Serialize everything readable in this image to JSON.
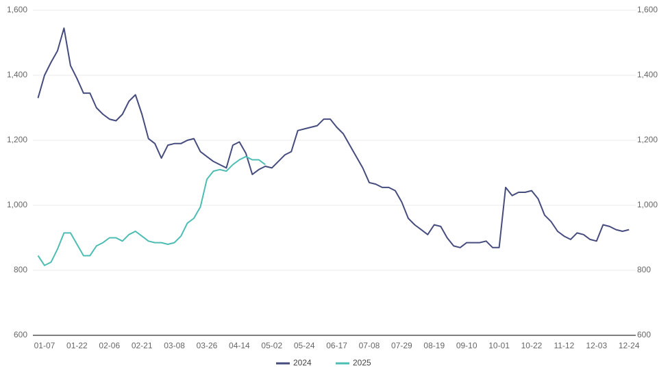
{
  "chart_data": {
    "type": "line",
    "categories": [
      null,
      "01-07",
      null,
      null,
      null,
      null,
      "01-22",
      null,
      null,
      null,
      null,
      "02-06",
      null,
      null,
      null,
      null,
      "02-21",
      null,
      null,
      null,
      null,
      "03-08",
      null,
      null,
      null,
      null,
      "03-26",
      null,
      null,
      null,
      null,
      "04-14",
      null,
      null,
      null,
      null,
      "05-02",
      null,
      null,
      null,
      null,
      "05-24",
      null,
      null,
      null,
      null,
      "06-17",
      null,
      null,
      null,
      null,
      "07-08",
      null,
      null,
      null,
      null,
      "07-29",
      null,
      null,
      null,
      null,
      "08-19",
      null,
      null,
      null,
      null,
      "09-10",
      null,
      null,
      null,
      null,
      "10-01",
      null,
      null,
      null,
      null,
      "10-22",
      null,
      null,
      null,
      null,
      "11-12",
      null,
      null,
      null,
      null,
      "12-03",
      null,
      null,
      null,
      null,
      "12-24"
    ],
    "series": [
      {
        "name": "2024",
        "color": "#454c7d",
        "values": [
          1330,
          1400,
          1440,
          1475,
          1545,
          1430,
          1390,
          1345,
          1345,
          1300,
          1280,
          1265,
          1260,
          1280,
          1320,
          1340,
          1280,
          1205,
          1190,
          1145,
          1185,
          1190,
          1190,
          1200,
          1205,
          1165,
          1150,
          1135,
          1125,
          1115,
          1185,
          1195,
          1160,
          1095,
          1110,
          1120,
          1115,
          1135,
          1155,
          1165,
          1230,
          1235,
          1240,
          1245,
          1265,
          1265,
          1240,
          1220,
          1185,
          1150,
          1115,
          1070,
          1065,
          1055,
          1055,
          1045,
          1010,
          960,
          940,
          925,
          910,
          940,
          935,
          900,
          875,
          870,
          885,
          885,
          885,
          890,
          870,
          870,
          1055,
          1030,
          1040,
          1040,
          1045,
          1020,
          970,
          950,
          920,
          905,
          895,
          915,
          910,
          895,
          890,
          940,
          935,
          925,
          920,
          925
        ]
      },
      {
        "name": "2025",
        "color": "#4dbdb3",
        "values": [
          845,
          815,
          825,
          865,
          915,
          915,
          880,
          845,
          845,
          875,
          885,
          900,
          900,
          890,
          910,
          920,
          905,
          890,
          885,
          885,
          880,
          885,
          905,
          945,
          960,
          995,
          1080,
          1105,
          1110,
          1105,
          1125,
          1140,
          1150,
          1140,
          1140,
          1125,
          null,
          null,
          null,
          null,
          null,
          null,
          null,
          null,
          null,
          null,
          null,
          null,
          null,
          null,
          null,
          null,
          null,
          null,
          null,
          null,
          null,
          null,
          null,
          null,
          null,
          null,
          null,
          null,
          null,
          null,
          null,
          null,
          null,
          null,
          null,
          null,
          null,
          null,
          null,
          null,
          null,
          null,
          null,
          null,
          null,
          null,
          null,
          null,
          null,
          null,
          null,
          null,
          null,
          null,
          null,
          null
        ]
      }
    ],
    "ylim": [
      600,
      1600
    ],
    "yticks": [
      600,
      800,
      {
        "value": 1000,
        "label": "1,000"
      },
      {
        "value": 1200,
        "label": "1,200"
      },
      {
        "value": 1400,
        "label": "1,400"
      },
      {
        "value": 1600,
        "label": "1,600"
      }
    ],
    "grid": true
  }
}
